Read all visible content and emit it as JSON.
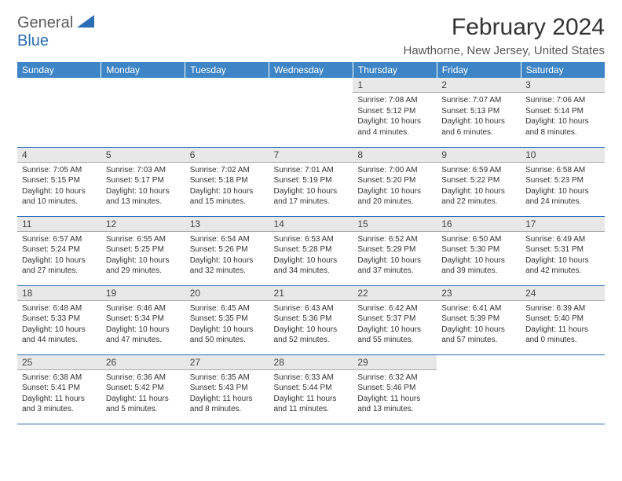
{
  "logo": {
    "line1": "General",
    "line2": "Blue"
  },
  "header": {
    "month_title": "February 2024",
    "location": "Hawthorne, New Jersey, United States"
  },
  "colors": {
    "header_bg": "#3d85c6",
    "header_text": "#ffffff",
    "daynum_bg": "#e8e8e8",
    "cell_border": "#2a6db5"
  },
  "day_labels": [
    "Sunday",
    "Monday",
    "Tuesday",
    "Wednesday",
    "Thursday",
    "Friday",
    "Saturday"
  ],
  "weeks": [
    [
      {
        "empty": true
      },
      {
        "empty": true
      },
      {
        "empty": true
      },
      {
        "empty": true
      },
      {
        "num": "1",
        "sunrise": "Sunrise: 7:08 AM",
        "sunset": "Sunset: 5:12 PM",
        "daylight1": "Daylight: 10 hours",
        "daylight2": "and 4 minutes."
      },
      {
        "num": "2",
        "sunrise": "Sunrise: 7:07 AM",
        "sunset": "Sunset: 5:13 PM",
        "daylight1": "Daylight: 10 hours",
        "daylight2": "and 6 minutes."
      },
      {
        "num": "3",
        "sunrise": "Sunrise: 7:06 AM",
        "sunset": "Sunset: 5:14 PM",
        "daylight1": "Daylight: 10 hours",
        "daylight2": "and 8 minutes."
      }
    ],
    [
      {
        "num": "4",
        "sunrise": "Sunrise: 7:05 AM",
        "sunset": "Sunset: 5:15 PM",
        "daylight1": "Daylight: 10 hours",
        "daylight2": "and 10 minutes."
      },
      {
        "num": "5",
        "sunrise": "Sunrise: 7:03 AM",
        "sunset": "Sunset: 5:17 PM",
        "daylight1": "Daylight: 10 hours",
        "daylight2": "and 13 minutes."
      },
      {
        "num": "6",
        "sunrise": "Sunrise: 7:02 AM",
        "sunset": "Sunset: 5:18 PM",
        "daylight1": "Daylight: 10 hours",
        "daylight2": "and 15 minutes."
      },
      {
        "num": "7",
        "sunrise": "Sunrise: 7:01 AM",
        "sunset": "Sunset: 5:19 PM",
        "daylight1": "Daylight: 10 hours",
        "daylight2": "and 17 minutes."
      },
      {
        "num": "8",
        "sunrise": "Sunrise: 7:00 AM",
        "sunset": "Sunset: 5:20 PM",
        "daylight1": "Daylight: 10 hours",
        "daylight2": "and 20 minutes."
      },
      {
        "num": "9",
        "sunrise": "Sunrise: 6:59 AM",
        "sunset": "Sunset: 5:22 PM",
        "daylight1": "Daylight: 10 hours",
        "daylight2": "and 22 minutes."
      },
      {
        "num": "10",
        "sunrise": "Sunrise: 6:58 AM",
        "sunset": "Sunset: 5:23 PM",
        "daylight1": "Daylight: 10 hours",
        "daylight2": "and 24 minutes."
      }
    ],
    [
      {
        "num": "11",
        "sunrise": "Sunrise: 6:57 AM",
        "sunset": "Sunset: 5:24 PM",
        "daylight1": "Daylight: 10 hours",
        "daylight2": "and 27 minutes."
      },
      {
        "num": "12",
        "sunrise": "Sunrise: 6:55 AM",
        "sunset": "Sunset: 5:25 PM",
        "daylight1": "Daylight: 10 hours",
        "daylight2": "and 29 minutes."
      },
      {
        "num": "13",
        "sunrise": "Sunrise: 6:54 AM",
        "sunset": "Sunset: 5:26 PM",
        "daylight1": "Daylight: 10 hours",
        "daylight2": "and 32 minutes."
      },
      {
        "num": "14",
        "sunrise": "Sunrise: 6:53 AM",
        "sunset": "Sunset: 5:28 PM",
        "daylight1": "Daylight: 10 hours",
        "daylight2": "and 34 minutes."
      },
      {
        "num": "15",
        "sunrise": "Sunrise: 6:52 AM",
        "sunset": "Sunset: 5:29 PM",
        "daylight1": "Daylight: 10 hours",
        "daylight2": "and 37 minutes."
      },
      {
        "num": "16",
        "sunrise": "Sunrise: 6:50 AM",
        "sunset": "Sunset: 5:30 PM",
        "daylight1": "Daylight: 10 hours",
        "daylight2": "and 39 minutes."
      },
      {
        "num": "17",
        "sunrise": "Sunrise: 6:49 AM",
        "sunset": "Sunset: 5:31 PM",
        "daylight1": "Daylight: 10 hours",
        "daylight2": "and 42 minutes."
      }
    ],
    [
      {
        "num": "18",
        "sunrise": "Sunrise: 6:48 AM",
        "sunset": "Sunset: 5:33 PM",
        "daylight1": "Daylight: 10 hours",
        "daylight2": "and 44 minutes."
      },
      {
        "num": "19",
        "sunrise": "Sunrise: 6:46 AM",
        "sunset": "Sunset: 5:34 PM",
        "daylight1": "Daylight: 10 hours",
        "daylight2": "and 47 minutes."
      },
      {
        "num": "20",
        "sunrise": "Sunrise: 6:45 AM",
        "sunset": "Sunset: 5:35 PM",
        "daylight1": "Daylight: 10 hours",
        "daylight2": "and 50 minutes."
      },
      {
        "num": "21",
        "sunrise": "Sunrise: 6:43 AM",
        "sunset": "Sunset: 5:36 PM",
        "daylight1": "Daylight: 10 hours",
        "daylight2": "and 52 minutes."
      },
      {
        "num": "22",
        "sunrise": "Sunrise: 6:42 AM",
        "sunset": "Sunset: 5:37 PM",
        "daylight1": "Daylight: 10 hours",
        "daylight2": "and 55 minutes."
      },
      {
        "num": "23",
        "sunrise": "Sunrise: 6:41 AM",
        "sunset": "Sunset: 5:39 PM",
        "daylight1": "Daylight: 10 hours",
        "daylight2": "and 57 minutes."
      },
      {
        "num": "24",
        "sunrise": "Sunrise: 6:39 AM",
        "sunset": "Sunset: 5:40 PM",
        "daylight1": "Daylight: 11 hours",
        "daylight2": "and 0 minutes."
      }
    ],
    [
      {
        "num": "25",
        "sunrise": "Sunrise: 6:38 AM",
        "sunset": "Sunset: 5:41 PM",
        "daylight1": "Daylight: 11 hours",
        "daylight2": "and 3 minutes."
      },
      {
        "num": "26",
        "sunrise": "Sunrise: 6:36 AM",
        "sunset": "Sunset: 5:42 PM",
        "daylight1": "Daylight: 11 hours",
        "daylight2": "and 5 minutes."
      },
      {
        "num": "27",
        "sunrise": "Sunrise: 6:35 AM",
        "sunset": "Sunset: 5:43 PM",
        "daylight1": "Daylight: 11 hours",
        "daylight2": "and 8 minutes."
      },
      {
        "num": "28",
        "sunrise": "Sunrise: 6:33 AM",
        "sunset": "Sunset: 5:44 PM",
        "daylight1": "Daylight: 11 hours",
        "daylight2": "and 11 minutes."
      },
      {
        "num": "29",
        "sunrise": "Sunrise: 6:32 AM",
        "sunset": "Sunset: 5:46 PM",
        "daylight1": "Daylight: 11 hours",
        "daylight2": "and 13 minutes."
      },
      {
        "empty": true
      },
      {
        "empty": true
      }
    ]
  ]
}
